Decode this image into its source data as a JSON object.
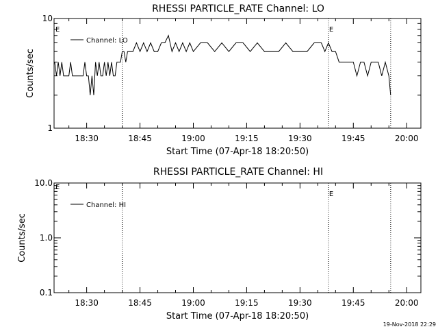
{
  "footer": {
    "date_stamp": "19-Nov-2018 22:29"
  },
  "chart_data": [
    {
      "type": "line",
      "title": "RHESSI PARTICLE_RATE Channel: LO",
      "xlabel": "Start Time (07-Apr-18 18:20:50)",
      "ylabel": "Counts/sec",
      "yscale": "log",
      "xlim": [
        "18:20:50",
        "20:04:00"
      ],
      "ylim": [
        1,
        10
      ],
      "ytick_labels": [
        "1",
        "10"
      ],
      "xtick_labels": [
        "18:30",
        "18:45",
        "19:00",
        "19:15",
        "19:30",
        "19:45",
        "20:00"
      ],
      "grid": false,
      "legend_position": "top-left",
      "legend": [
        "Channel: LO"
      ],
      "markers": [
        {
          "time": "18:40:00",
          "label": ""
        },
        {
          "time": "19:38:00",
          "label": "E"
        },
        {
          "time": "19:55:30",
          "label": ""
        }
      ],
      "edge_label": "E",
      "series": [
        {
          "name": "Channel: LO",
          "x": [
            "18:21:00",
            "18:21:30",
            "18:22:00",
            "18:22:30",
            "18:23:00",
            "18:23:30",
            "18:24:00",
            "18:24:30",
            "18:25:00",
            "18:25:30",
            "18:26:00",
            "18:26:30",
            "18:27:00",
            "18:27:30",
            "18:28:00",
            "18:28:30",
            "18:29:00",
            "18:29:30",
            "18:30:00",
            "18:30:30",
            "18:31:00",
            "18:31:30",
            "18:32:00",
            "18:32:30",
            "18:33:00",
            "18:33:30",
            "18:34:00",
            "18:34:30",
            "18:35:00",
            "18:35:30",
            "18:36:00",
            "18:36:30",
            "18:37:00",
            "18:37:30",
            "18:38:00",
            "18:38:30",
            "18:39:00",
            "18:39:30",
            "18:40:00",
            "18:40:30",
            "18:41:00",
            "18:41:30",
            "18:42:00",
            "18:43:00",
            "18:44:00",
            "18:45:00",
            "18:46:00",
            "18:47:00",
            "18:48:00",
            "18:49:00",
            "18:50:00",
            "18:51:00",
            "18:52:00",
            "18:53:00",
            "18:54:00",
            "18:55:00",
            "18:56:00",
            "18:57:00",
            "18:58:00",
            "18:59:00",
            "19:00:00",
            "19:02:00",
            "19:04:00",
            "19:06:00",
            "19:08:00",
            "19:10:00",
            "19:12:00",
            "19:14:00",
            "19:16:00",
            "19:18:00",
            "19:20:00",
            "19:22:00",
            "19:24:00",
            "19:26:00",
            "19:28:00",
            "19:30:00",
            "19:32:00",
            "19:34:00",
            "19:36:00",
            "19:37:00",
            "19:38:00",
            "19:39:00",
            "19:40:00",
            "19:41:00",
            "19:42:00",
            "19:43:00",
            "19:44:00",
            "19:45:00",
            "19:46:00",
            "19:47:00",
            "19:48:00",
            "19:49:00",
            "19:50:00",
            "19:51:00",
            "19:52:00",
            "19:53:00",
            "19:54:00",
            "19:55:00",
            "19:55:30"
          ],
          "values": [
            4,
            3,
            4,
            3,
            4,
            3,
            3,
            3,
            3,
            4,
            3,
            3,
            3,
            3,
            3,
            3,
            3,
            4,
            3,
            3,
            2,
            3,
            2,
            4,
            3,
            4,
            3,
            3,
            4,
            3,
            4,
            3,
            4,
            3,
            3,
            4,
            4,
            4,
            5,
            5,
            4,
            5,
            5,
            5,
            6,
            5,
            6,
            5,
            6,
            5,
            5,
            6,
            6,
            7,
            5,
            6,
            5,
            6,
            5,
            6,
            5,
            6,
            6,
            5,
            6,
            5,
            6,
            6,
            5,
            6,
            5,
            5,
            5,
            6,
            5,
            5,
            5,
            6,
            6,
            5,
            6,
            5,
            5,
            4,
            4,
            4,
            4,
            4,
            3,
            4,
            4,
            3,
            4,
            4,
            4,
            3,
            4,
            3,
            2
          ]
        }
      ]
    },
    {
      "type": "line",
      "title": "RHESSI PARTICLE_RATE Channel: HI",
      "xlabel": "Start Time (07-Apr-18 18:20:50)",
      "ylabel": "Counts/sec",
      "yscale": "log",
      "xlim": [
        "18:20:50",
        "20:04:00"
      ],
      "ylim": [
        0.1,
        10
      ],
      "ytick_labels": [
        "0.1",
        "1.0",
        "10.0"
      ],
      "xtick_labels": [
        "18:30",
        "18:45",
        "19:00",
        "19:15",
        "19:30",
        "19:45",
        "20:00"
      ],
      "grid": false,
      "legend_position": "top-left",
      "legend": [
        "Channel: HI"
      ],
      "markers": [
        {
          "time": "18:40:00",
          "label": ""
        },
        {
          "time": "19:38:00",
          "label": "E"
        },
        {
          "time": "19:55:30",
          "label": ""
        }
      ],
      "edge_label": "E",
      "series": [
        {
          "name": "Channel: HI",
          "x": [],
          "values": []
        }
      ]
    }
  ]
}
